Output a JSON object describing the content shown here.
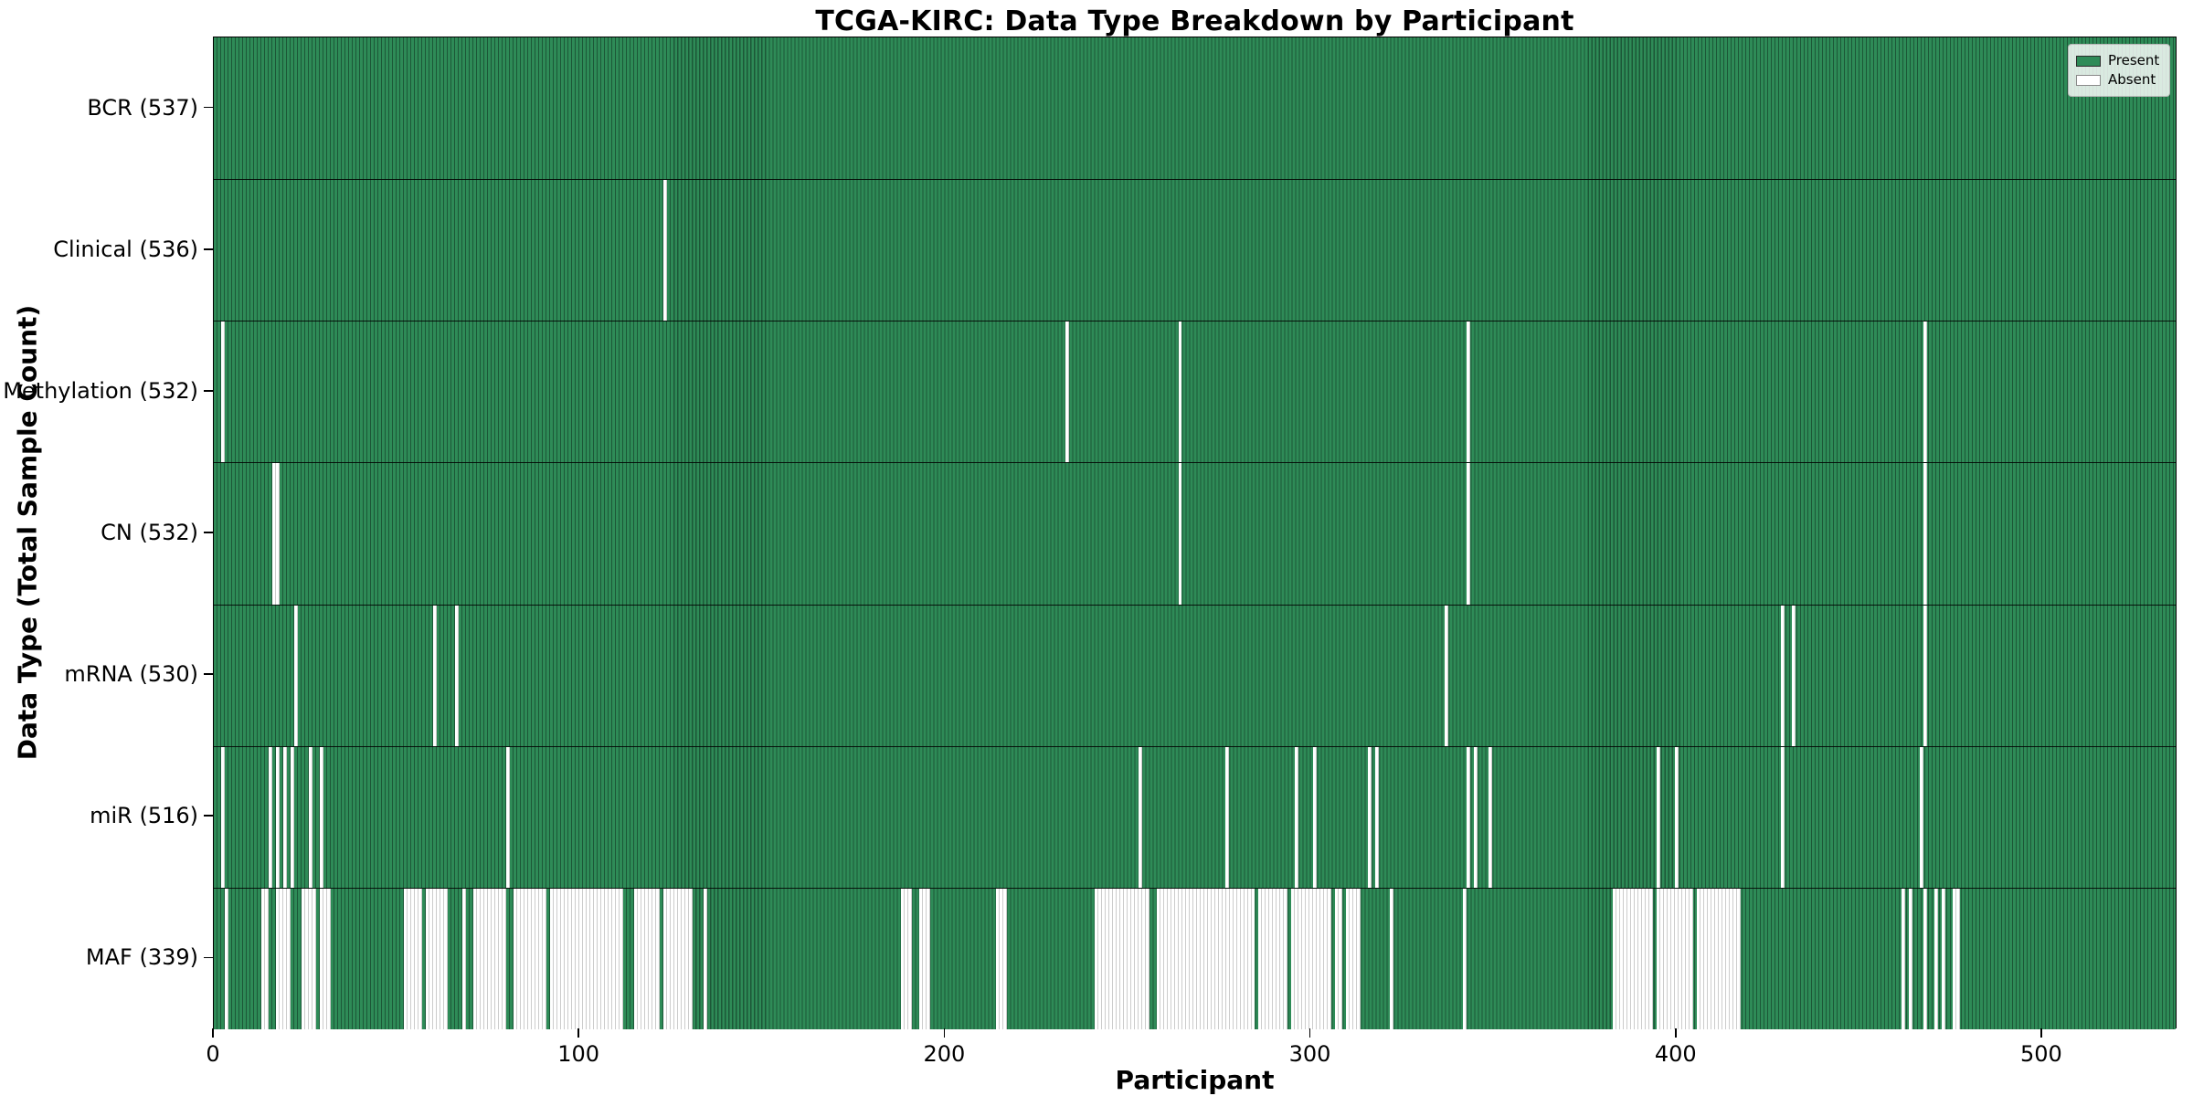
{
  "figure": {
    "title": "TCGA-KIRC: Data Type Breakdown by Participant",
    "x_axis_label": "Participant",
    "y_axis_label": "Data Type (Total Sample Count)"
  },
  "legend": {
    "present_label": "Present",
    "absent_label": "Absent",
    "position": "upper right"
  },
  "colors": {
    "present": "#2e8b57",
    "present_edge": "#1c5737",
    "absent": "#ffffff",
    "absent_edge": "#cccccc",
    "axis": "#000000"
  },
  "chart_data": {
    "type": "heatmap",
    "title": "TCGA-KIRC: Data Type Breakdown by Participant",
    "xlabel": "Participant",
    "ylabel": "Data Type (Total Sample Count)",
    "legend": [
      "Present",
      "Absent"
    ],
    "legend_position": "upper right",
    "grid": false,
    "total_participants": 537,
    "xlim": [
      0,
      537
    ],
    "x_ticks": [
      0,
      100,
      200,
      300,
      400,
      500
    ],
    "value_encoding": {
      "present": "seagreen bar",
      "absent": "white gap"
    },
    "rows": [
      {
        "name": "bcr",
        "label": "BCR (537)",
        "data_type": "BCR",
        "present_count": 537,
        "absent_count": 0,
        "absent_ranges": []
      },
      {
        "name": "clinical",
        "label": "Clinical (536)",
        "data_type": "Clinical",
        "present_count": 536,
        "absent_count": 1,
        "absent_ranges": [
          [
            123,
            123
          ]
        ]
      },
      {
        "name": "methylation",
        "label": "Methylation (532)",
        "data_type": "Methylation",
        "present_count": 532,
        "absent_count": 5,
        "absent_ranges": [
          [
            2,
            2
          ],
          [
            233,
            233
          ],
          [
            264,
            264
          ],
          [
            343,
            343
          ],
          [
            468,
            468
          ]
        ]
      },
      {
        "name": "cn",
        "label": "CN (532)",
        "data_type": "CN",
        "present_count": 532,
        "absent_count": 5,
        "absent_ranges": [
          [
            16,
            17
          ],
          [
            264,
            264
          ],
          [
            343,
            343
          ],
          [
            468,
            468
          ]
        ]
      },
      {
        "name": "mrna",
        "label": "mRNA (530)",
        "data_type": "mRNA",
        "present_count": 530,
        "absent_count": 7,
        "absent_ranges": [
          [
            22,
            22
          ],
          [
            60,
            60
          ],
          [
            66,
            66
          ],
          [
            337,
            337
          ],
          [
            429,
            429
          ],
          [
            432,
            432
          ],
          [
            468,
            468
          ]
        ]
      },
      {
        "name": "mir",
        "label": "miR (516)",
        "data_type": "miR",
        "present_count": 516,
        "absent_count": 21,
        "absent_ranges": [
          [
            2,
            2
          ],
          [
            15,
            15
          ],
          [
            17,
            17
          ],
          [
            19,
            19
          ],
          [
            21,
            21
          ],
          [
            26,
            26
          ],
          [
            29,
            29
          ],
          [
            80,
            80
          ],
          [
            253,
            253
          ],
          [
            277,
            277
          ],
          [
            296,
            296
          ],
          [
            301,
            301
          ],
          [
            316,
            316
          ],
          [
            318,
            318
          ],
          [
            343,
            343
          ],
          [
            345,
            345
          ],
          [
            349,
            349
          ],
          [
            395,
            395
          ],
          [
            400,
            400
          ],
          [
            429,
            429
          ],
          [
            467,
            467
          ]
        ]
      },
      {
        "name": "maf",
        "label": "MAF (339)",
        "data_type": "MAF",
        "present_count": 339,
        "absent_count": 198,
        "absent_ranges": [
          [
            3,
            3
          ],
          [
            13,
            14
          ],
          [
            17,
            20
          ],
          [
            24,
            27
          ],
          [
            29,
            31
          ],
          [
            52,
            56
          ],
          [
            58,
            63
          ],
          [
            68,
            68
          ],
          [
            71,
            79
          ],
          [
            82,
            90
          ],
          [
            92,
            99
          ],
          [
            100,
            111
          ],
          [
            115,
            121
          ],
          [
            123,
            130
          ],
          [
            134,
            134
          ],
          [
            188,
            190
          ],
          [
            193,
            195
          ],
          [
            214,
            216
          ],
          [
            241,
            255
          ],
          [
            258,
            284
          ],
          [
            286,
            293
          ],
          [
            295,
            305
          ],
          [
            307,
            308
          ],
          [
            310,
            313
          ],
          [
            322,
            322
          ],
          [
            342,
            342
          ],
          [
            383,
            393
          ],
          [
            395,
            404
          ],
          [
            406,
            417
          ],
          [
            462,
            462
          ],
          [
            464,
            464
          ],
          [
            468,
            468
          ],
          [
            471,
            471
          ],
          [
            473,
            473
          ],
          [
            476,
            477
          ]
        ]
      }
    ]
  }
}
